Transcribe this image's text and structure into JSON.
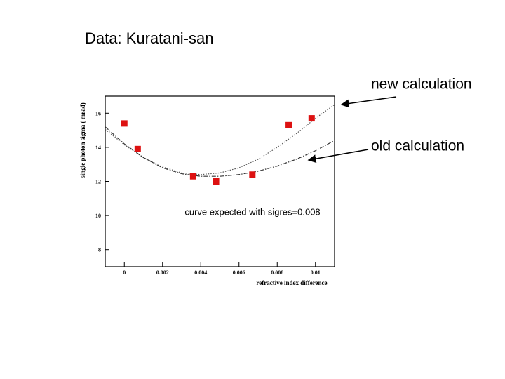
{
  "title": "Data: Kuratani-san",
  "labels": [
    "new calculation",
    "old calculation"
  ],
  "chart_data": {
    "type": "scatter",
    "x_label": "refractive index difference",
    "y_label": "single photon sigma ( mrad)",
    "annotation": "curve expected with sigres=0.008",
    "xlim": [
      -0.001,
      0.011
    ],
    "ylim": [
      7,
      17
    ],
    "xticks": [
      0,
      0.002,
      0.004,
      0.006,
      0.008,
      0.01
    ],
    "yticks": [
      8,
      10,
      12,
      14,
      16
    ],
    "points": {
      "color": "#dd1111",
      "x": [
        0,
        0.0007,
        0.0036,
        0.0048,
        0.0067,
        0.0086,
        0.0098
      ],
      "values": [
        15.4,
        13.9,
        12.3,
        12.0,
        12.4,
        15.3,
        15.7
      ]
    },
    "curve_x": [
      -0.001,
      0,
      0.001,
      0.002,
      0.003,
      0.004,
      0.005,
      0.006,
      0.007,
      0.008,
      0.009,
      0.01,
      0.011
    ],
    "curves": [
      {
        "color": "#555555",
        "dash": "1.5 2",
        "values": [
          15.05,
          14.15,
          13.4,
          12.85,
          12.5,
          12.4,
          12.5,
          12.8,
          13.3,
          14.0,
          14.8,
          15.7,
          16.5
        ]
      },
      {
        "color": "#333333",
        "dash": "6 2 1.5 2",
        "values": [
          15.2,
          14.2,
          13.4,
          12.8,
          12.45,
          12.3,
          12.3,
          12.4,
          12.6,
          12.9,
          13.3,
          13.8,
          14.4
        ]
      }
    ]
  }
}
